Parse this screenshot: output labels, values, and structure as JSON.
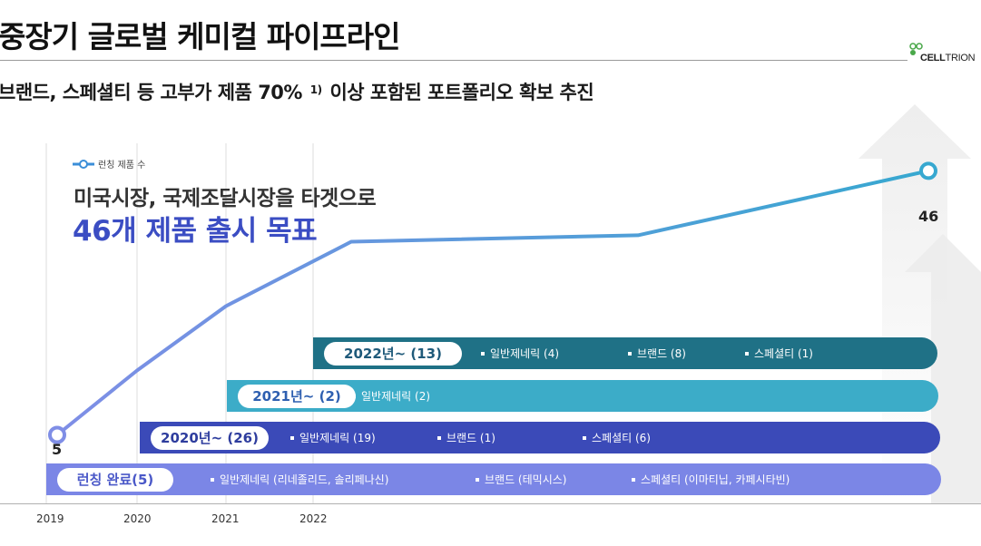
{
  "title": "중장기 글로벌 케미컬 파이프라인",
  "subtitle": {
    "before": "브랜드, 스페셜티 등 고부가 제품 70%",
    "footnote_mark": "1)",
    "after": "이상 포함된 포트폴리오 확보 추진"
  },
  "logo": {
    "bold": "CELL",
    "thin": "TRION"
  },
  "headline": {
    "line1": "미국시장, 국제조달시장을 타겟으로",
    "line2": "46개 제품 출시 목표"
  },
  "colors": {
    "line_start": "#7f8ee6",
    "line_end": "#37a8d0",
    "band_2022": "#1f7186",
    "band_2021": "#3cacc8",
    "band_2020": "#3b4ab8",
    "band_launch": "#7b86e6"
  },
  "chart_data": {
    "type": "line",
    "title": "",
    "xlabel": "",
    "ylabel": "",
    "x": [
      "2019",
      "2020",
      "2021",
      "2022",
      "",
      ""
    ],
    "tick_labels": [
      "2019",
      "2020",
      "2021",
      "2022"
    ],
    "series": [
      {
        "name": "런칭 제품 수",
        "values": [
          5,
          15,
          25,
          35,
          36,
          46
        ]
      }
    ],
    "ylim": [
      0,
      50
    ],
    "start_label": "5",
    "end_label": "46",
    "legend": "top-left",
    "grid": false
  },
  "bands": [
    {
      "label": "2022년~ (13)",
      "items": [
        "일반제네릭 (4)",
        "브랜드 (8)",
        "스페셜티 (1)"
      ]
    },
    {
      "label": "2021년~ (2)",
      "items": [
        "일반제네릭 (2)"
      ]
    },
    {
      "label": "2020년~ (26)",
      "items": [
        "일반제네릭 (19)",
        "브랜드 (1)",
        "스페셜티 (6)"
      ]
    },
    {
      "label": "런칭 완료(5)",
      "items": [
        "일반제네릭 (리네졸리드, 솔리페나신)",
        "브랜드 (테믹시스)",
        "스페셜티 (이마티닙, 카페시타빈)"
      ]
    }
  ]
}
